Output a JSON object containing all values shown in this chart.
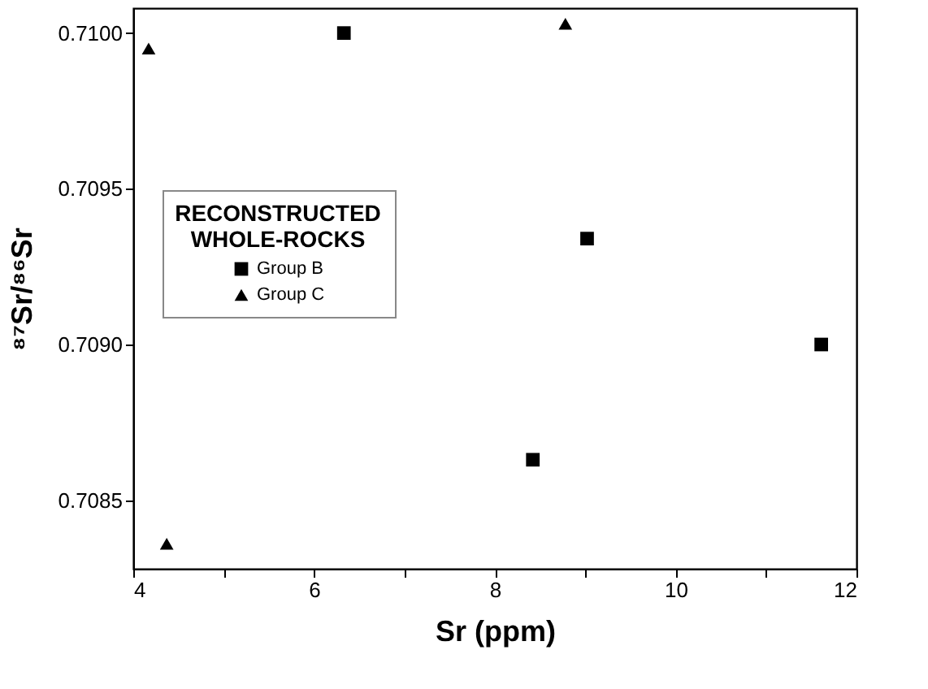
{
  "chart_data": {
    "type": "scatter",
    "xlabel": "Sr (ppm)",
    "ylabel": "⁸⁷Sr/⁸⁶Sr",
    "legend_title": "RECONSTRUCTED\nWHOLE-ROCKS",
    "series": [
      {
        "name": "Group B",
        "color": "#000000",
        "marker": "square",
        "x": [
          6.33,
          9.02,
          11.61,
          8.42
        ],
        "values": [
          0.71,
          0.70934,
          0.709,
          0.70863
        ]
      },
      {
        "name": "Group C",
        "color": "#000000",
        "marker": "triangle",
        "x": [
          4.17,
          8.78,
          4.37
        ],
        "values": [
          0.70995,
          0.71003,
          0.70836
        ]
      }
    ],
    "xlim": [
      4,
      12
    ],
    "ylim": [
      0.70828,
      0.71008
    ],
    "xticks": [
      4,
      {
        "value": 5,
        "label": null
      },
      6,
      {
        "value": 7,
        "label": null
      },
      8,
      {
        "value": 9,
        "label": null
      },
      10,
      {
        "value": 11,
        "label": null
      },
      12
    ],
    "yticks": [
      {
        "value": 0.7085,
        "label": "0.7085"
      },
      {
        "value": 0.709,
        "label": "0.7090"
      },
      {
        "value": 0.7095,
        "label": "0.7095"
      },
      {
        "value": 0.71,
        "label": "0.7100"
      }
    ],
    "grid": false,
    "legend": "left"
  }
}
